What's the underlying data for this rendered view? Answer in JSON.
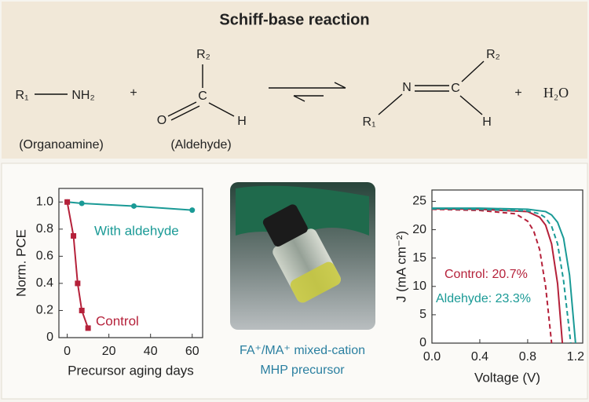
{
  "title": "Schiff-base reaction",
  "scheme": {
    "labels": [
      "R₁",
      "NH₂",
      "+",
      "R₂",
      "C",
      "O",
      "H",
      "N",
      "C",
      "R₁",
      "R₂",
      "H",
      "+",
      "H₂O",
      "(Organoamine)",
      "(Aldehyde)"
    ]
  },
  "photo": {
    "caption": [
      "FA⁺/MA⁺ mixed-cation",
      "MHP precursor"
    ]
  },
  "chart_data": [
    {
      "type": "line",
      "xlabel": "Precursor aging days",
      "ylabel": "Norm. PCE",
      "xlim": [
        -4,
        65
      ],
      "ylim": [
        0,
        1.1
      ],
      "xticks": [
        0,
        20,
        40,
        60
      ],
      "yticks": [
        0,
        0.2,
        0.4,
        0.6,
        0.8,
        {
          "value": 1,
          "label": "1.0"
        }
      ],
      "series": [
        {
          "name": "With aldehyde",
          "color": "#1a9a96",
          "marker": "circle",
          "x": [
            0,
            7,
            32,
            60
          ],
          "values": [
            1.0,
            0.99,
            0.97,
            0.94
          ]
        },
        {
          "name": "Control",
          "color": "#b5213a",
          "marker": "square",
          "x": [
            0,
            3,
            5,
            7,
            10
          ],
          "values": [
            1.0,
            0.75,
            0.4,
            0.2,
            0.07
          ]
        }
      ]
    },
    {
      "type": "line",
      "xlabel": "Voltage (V)",
      "ylabel": "J (mA cm⁻²)",
      "xlim": [
        0,
        1.26
      ],
      "ylim": [
        0,
        27
      ],
      "xticks": [
        {
          "value": 0,
          "label": "0.0"
        },
        0.4,
        0.8,
        1.2
      ],
      "yticks": [
        0,
        5,
        10,
        15,
        20,
        25
      ],
      "series": [
        {
          "name": "Control: 20.7%",
          "color": "#b5213a",
          "dash": false,
          "x": [
            0,
            0.4,
            0.8,
            0.9,
            0.95,
            1.0,
            1.05,
            1.09
          ],
          "values": [
            23.7,
            23.6,
            23.2,
            22.2,
            20.8,
            17.5,
            10.5,
            0
          ]
        },
        {
          "color": "#b5213a",
          "dash": true,
          "x": [
            0,
            0.4,
            0.7,
            0.8,
            0.85,
            0.9,
            0.95,
            1.0
          ],
          "values": [
            23.6,
            23.4,
            22.8,
            21.5,
            19.8,
            16.5,
            10,
            0
          ]
        },
        {
          "name": "Aldehyde: 23.3%",
          "color": "#1a9a96",
          "dash": false,
          "x": [
            0,
            0.4,
            0.8,
            0.95,
            1.0,
            1.05,
            1.1,
            1.15,
            1.2
          ],
          "values": [
            23.8,
            23.8,
            23.6,
            23.2,
            22.6,
            21.3,
            18.5,
            12,
            0
          ]
        },
        {
          "color": "#1a9a96",
          "dash": true,
          "x": [
            0,
            0.4,
            0.8,
            0.9,
            0.95,
            1.0,
            1.05,
            1.1,
            1.16
          ],
          "values": [
            23.7,
            23.6,
            23.3,
            22.8,
            22.1,
            20.6,
            17.5,
            11,
            0
          ]
        }
      ]
    }
  ]
}
